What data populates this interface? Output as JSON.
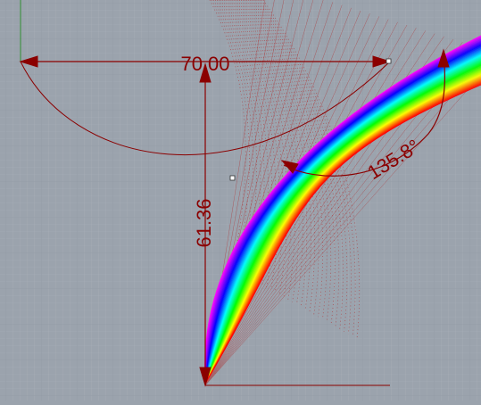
{
  "viewport": {
    "background": "#9ba3ad",
    "grid_minor_color": "#a7aeb7",
    "grid_major_color": "#8e97a2",
    "dimension_color": "#8b0000"
  },
  "dimensions": {
    "horizontal_label": "70.00",
    "vertical_label": "61.36",
    "angle_label": "135.8°"
  },
  "axes": {
    "y_axis_color": "#2e8b2e",
    "x_axis_color": "#8b0000"
  },
  "icons": {
    "control_point": "square-handle-icon"
  }
}
